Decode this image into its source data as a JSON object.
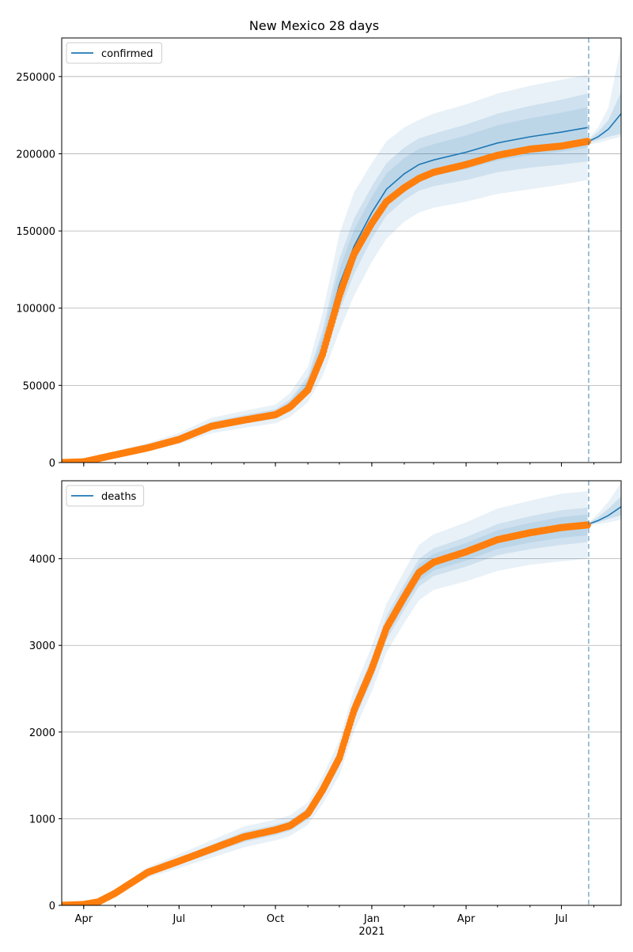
{
  "figure": {
    "title": "New Mexico 28 days"
  },
  "colors": {
    "model_line": "#1f77b4",
    "band": "#1f77b4",
    "observed": "#ff7f0e",
    "grid": "#b0b0b0",
    "axis": "#000000"
  },
  "chart_data": [
    {
      "type": "line",
      "legend": "confirmed",
      "legend_loc": "upper-left",
      "grid": "y",
      "ylim": [
        0,
        275000
      ],
      "yticks": [
        {
          "value": 0,
          "label": "0"
        },
        {
          "value": 50000,
          "label": "50000"
        },
        {
          "value": 100000,
          "label": "100000"
        },
        {
          "value": 150000,
          "label": "150000"
        },
        {
          "value": 200000,
          "label": "200000"
        },
        {
          "value": 250000,
          "label": "250000"
        }
      ],
      "model": {
        "x": [
          "2020-03-11",
          "2020-04-01",
          "2020-05-01",
          "2020-06-01",
          "2020-07-01",
          "2020-08-01",
          "2020-09-01",
          "2020-10-01",
          "2020-10-15",
          "2020-11-01",
          "2020-11-15",
          "2020-12-01",
          "2020-12-15",
          "2021-01-01",
          "2021-01-15",
          "2021-02-01",
          "2021-02-15",
          "2021-03-01",
          "2021-04-01",
          "2021-05-01",
          "2021-06-01",
          "2021-07-01",
          "2021-07-26",
          "2021-08-10",
          "2021-08-27"
        ],
        "y": [
          0,
          700,
          5500,
          10000,
          15500,
          24000,
          28000,
          31500,
          37000,
          50000,
          75000,
          115000,
          140000,
          162000,
          177000,
          187000,
          193000,
          196000,
          201000,
          207000,
          211000,
          214000,
          217000,
          215000,
          226000
        ],
        "band50": [
          [
            0,
            0
          ],
          [
            600,
            800
          ],
          [
            4700,
            6300
          ],
          [
            8700,
            11300
          ],
          [
            13600,
            17400
          ],
          [
            21500,
            26500
          ],
          [
            25200,
            30800
          ],
          [
            28400,
            34600
          ],
          [
            33000,
            41000
          ],
          [
            44000,
            56000
          ],
          [
            64000,
            86000
          ],
          [
            98000,
            132000
          ],
          [
            122000,
            158000
          ],
          [
            145000,
            179000
          ],
          [
            160000,
            194000
          ],
          [
            170000,
            204000
          ],
          [
            176000,
            210000
          ],
          [
            179000,
            213000
          ],
          [
            183000,
            219000
          ],
          [
            188000,
            226000
          ],
          [
            191000,
            231000
          ],
          [
            193000,
            235000
          ],
          [
            195000,
            239000
          ]
        ],
        "band80": [
          [
            0,
            0
          ],
          [
            500,
            900
          ],
          [
            4000,
            7200
          ],
          [
            7500,
            12600
          ],
          [
            12000,
            19200
          ],
          [
            19000,
            29000
          ],
          [
            22500,
            33500
          ],
          [
            25500,
            37500
          ],
          [
            29500,
            45000
          ],
          [
            39000,
            62000
          ],
          [
            56000,
            97000
          ],
          [
            85000,
            148000
          ],
          [
            108000,
            175000
          ],
          [
            130000,
            194000
          ],
          [
            145000,
            208000
          ],
          [
            156000,
            217000
          ],
          [
            162000,
            222000
          ],
          [
            165000,
            226000
          ],
          [
            169000,
            232000
          ],
          [
            174000,
            239000
          ],
          [
            177000,
            244000
          ],
          [
            180000,
            248000
          ],
          [
            183000,
            251000
          ]
        ],
        "forecast": {
          "x": [
            "2021-07-27",
            "2021-08-05",
            "2021-08-15",
            "2021-08-27"
          ],
          "y": [
            208000,
            211000,
            216000,
            226000
          ],
          "band_inner": [
            [
              207000,
              209000
            ],
            [
              209000,
              214000
            ],
            [
              211000,
              222000
            ],
            [
              213000,
              240000
            ]
          ],
          "band_outer": [
            [
              206000,
              210000
            ],
            [
              207000,
              217000
            ],
            [
              209000,
              230000
            ],
            [
              211000,
              270000
            ]
          ]
        }
      },
      "observed": {
        "x": [
          "2020-03-11",
          "2020-04-01",
          "2020-05-01",
          "2020-06-01",
          "2020-07-01",
          "2020-08-01",
          "2020-09-01",
          "2020-10-01",
          "2020-10-15",
          "2020-11-01",
          "2020-11-15",
          "2020-12-01",
          "2020-12-15",
          "2021-01-01",
          "2021-01-15",
          "2021-02-01",
          "2021-02-15",
          "2021-03-01",
          "2021-04-01",
          "2021-05-01",
          "2021-06-01",
          "2021-07-01",
          "2021-07-26"
        ],
        "y": [
          0,
          500,
          5000,
          9500,
          15000,
          23500,
          27500,
          31000,
          36000,
          47000,
          70000,
          108000,
          135000,
          155000,
          169000,
          178000,
          184000,
          188000,
          193000,
          199000,
          203000,
          205000,
          208000
        ]
      },
      "forecast_start": "2021-07-27"
    },
    {
      "type": "line",
      "legend": "deaths",
      "legend_loc": "upper-left",
      "grid": "y",
      "ylim": [
        0,
        4900
      ],
      "yticks": [
        {
          "value": 0,
          "label": "0"
        },
        {
          "value": 1000,
          "label": "1000"
        },
        {
          "value": 2000,
          "label": "2000"
        },
        {
          "value": 3000,
          "label": "3000"
        },
        {
          "value": 4000,
          "label": "4000"
        }
      ],
      "model": {
        "x": [
          "2020-03-11",
          "2020-04-01",
          "2020-04-15",
          "2020-05-01",
          "2020-06-01",
          "2020-07-01",
          "2020-08-01",
          "2020-09-01",
          "2020-10-01",
          "2020-10-15",
          "2020-11-01",
          "2020-11-15",
          "2020-12-01",
          "2020-12-15",
          "2021-01-01",
          "2021-01-15",
          "2021-02-01",
          "2021-02-15",
          "2021-03-01",
          "2021-04-01",
          "2021-05-01",
          "2021-06-01",
          "2021-07-01",
          "2021-07-26"
        ],
        "y": [
          0,
          10,
          40,
          140,
          380,
          510,
          650,
          790,
          870,
          920,
          1060,
          1330,
          1700,
          2250,
          2730,
          3200,
          3560,
          3840,
          3960,
          4080,
          4220,
          4300,
          4360,
          4390
        ],
        "band50": [
          [
            0,
            0
          ],
          [
            8,
            12
          ],
          [
            34,
            46
          ],
          [
            125,
            155
          ],
          [
            350,
            410
          ],
          [
            470,
            550
          ],
          [
            600,
            700
          ],
          [
            730,
            850
          ],
          [
            810,
            930
          ],
          [
            860,
            980
          ],
          [
            990,
            1130
          ],
          [
            1250,
            1410
          ],
          [
            1600,
            1800
          ],
          [
            2130,
            2370
          ],
          [
            2600,
            2860
          ],
          [
            3060,
            3340
          ],
          [
            3410,
            3710
          ],
          [
            3680,
            4000
          ],
          [
            3800,
            4120
          ],
          [
            3910,
            4250
          ],
          [
            4040,
            4400
          ],
          [
            4110,
            4490
          ],
          [
            4160,
            4560
          ],
          [
            4190,
            4590
          ]
        ],
        "band80": [
          [
            0,
            0
          ],
          [
            6,
            14
          ],
          [
            28,
            52
          ],
          [
            110,
            170
          ],
          [
            320,
            440
          ],
          [
            430,
            590
          ],
          [
            550,
            750
          ],
          [
            670,
            910
          ],
          [
            750,
            990
          ],
          [
            800,
            1040
          ],
          [
            930,
            1190
          ],
          [
            1170,
            1490
          ],
          [
            1500,
            1900
          ],
          [
            2010,
            2490
          ],
          [
            2470,
            2990
          ],
          [
            2920,
            3480
          ],
          [
            3260,
            3860
          ],
          [
            3520,
            4160
          ],
          [
            3640,
            4280
          ],
          [
            3740,
            4420
          ],
          [
            3860,
            4580
          ],
          [
            3930,
            4670
          ],
          [
            3970,
            4750
          ],
          [
            4000,
            4780
          ]
        ],
        "forecast": {
          "x": [
            "2021-07-27",
            "2021-08-05",
            "2021-08-15",
            "2021-08-27"
          ],
          "y": [
            4400,
            4440,
            4500,
            4600
          ],
          "band_inner": [
            [
              4390,
              4410
            ],
            [
              4420,
              4480
            ],
            [
              4460,
              4580
            ],
            [
              4500,
              4720
            ]
          ],
          "band_outer": [
            [
              4380,
              4420
            ],
            [
              4400,
              4520
            ],
            [
              4420,
              4660
            ],
            [
              4450,
              4880
            ]
          ]
        }
      },
      "observed": {
        "x": [
          "2020-03-11",
          "2020-04-01",
          "2020-04-15",
          "2020-05-01",
          "2020-06-01",
          "2020-07-01",
          "2020-08-01",
          "2020-09-01",
          "2020-10-01",
          "2020-10-15",
          "2020-11-01",
          "2020-11-15",
          "2020-12-01",
          "2020-12-15",
          "2021-01-01",
          "2021-01-15",
          "2021-02-01",
          "2021-02-15",
          "2021-03-01",
          "2021-04-01",
          "2021-05-01",
          "2021-06-01",
          "2021-07-01",
          "2021-07-26"
        ],
        "y": [
          0,
          10,
          40,
          140,
          380,
          510,
          650,
          790,
          870,
          920,
          1060,
          1330,
          1700,
          2250,
          2730,
          3200,
          3560,
          3840,
          3960,
          4080,
          4220,
          4300,
          4360,
          4390
        ]
      },
      "forecast_start": "2021-07-27"
    }
  ],
  "xaxis": {
    "range": [
      "2020-03-11",
      "2021-08-27"
    ],
    "ticks": [
      {
        "date": "2020-04-01",
        "label": "Apr"
      },
      {
        "date": "2020-07-01",
        "label": "Jul"
      },
      {
        "date": "2020-10-01",
        "label": "Oct"
      },
      {
        "date": "2021-01-01",
        "label": "Jan"
      },
      {
        "date": "2021-04-01",
        "label": "Apr"
      },
      {
        "date": "2021-07-01",
        "label": "Jul"
      }
    ],
    "year_label": "2021"
  }
}
